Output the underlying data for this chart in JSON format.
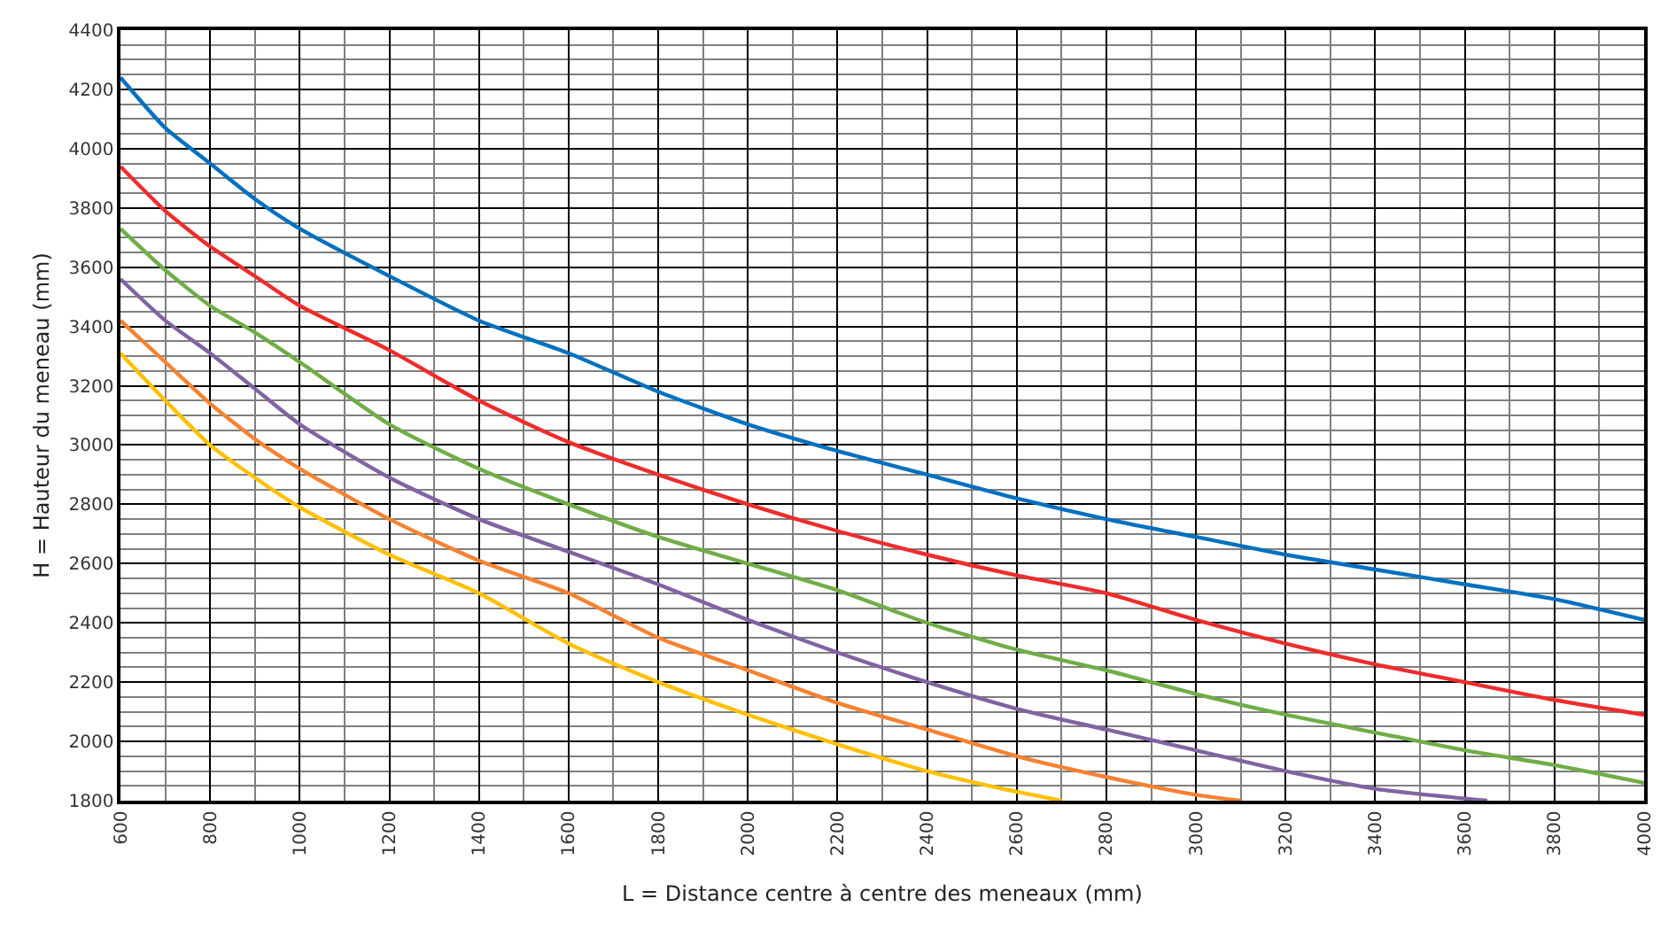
{
  "chart_data": {
    "type": "line",
    "xlabel": "L = Distance centre à centre des meneaux (mm)",
    "ylabel": "H = Hauteur du meneau (mm)",
    "xlim": [
      600,
      4000
    ],
    "xticks": [
      600,
      800,
      1000,
      1200,
      1400,
      1600,
      1800,
      2000,
      2200,
      2400,
      2600,
      2800,
      3000,
      3200,
      3400,
      3600,
      3800,
      4000
    ],
    "ylim": [
      1800,
      4400
    ],
    "yticks": [
      1800,
      2000,
      2200,
      2400,
      2600,
      2800,
      3000,
      3200,
      3400,
      3600,
      3800,
      4000,
      4200,
      4400
    ],
    "grid": true,
    "marker": "none",
    "line_style": "solid",
    "series": [
      {
        "color": "#0070c0",
        "x": [
          600,
          700,
          800,
          900,
          1000,
          1200,
          1400,
          1600,
          1800,
          2000,
          2200,
          2400,
          2600,
          2800,
          3000,
          3200,
          3400,
          3600,
          3800,
          4000
        ],
        "values": [
          4240,
          4070,
          3950,
          3830,
          3730,
          3570,
          3420,
          3310,
          3180,
          3070,
          2980,
          2900,
          2820,
          2750,
          2690,
          2630,
          2580,
          2530,
          2480,
          2410
        ]
      },
      {
        "color": "#ee2c2c",
        "x": [
          600,
          700,
          800,
          900,
          1000,
          1200,
          1400,
          1600,
          1800,
          2000,
          2200,
          2400,
          2600,
          2800,
          3000,
          3200,
          3400,
          3600,
          3800,
          4000
        ],
        "values": [
          3940,
          3790,
          3670,
          3570,
          3470,
          3320,
          3150,
          3010,
          2900,
          2800,
          2710,
          2630,
          2560,
          2500,
          2410,
          2330,
          2260,
          2200,
          2140,
          2090
        ]
      },
      {
        "color": "#70ad47",
        "x": [
          600,
          700,
          800,
          900,
          1000,
          1200,
          1400,
          1600,
          1800,
          2000,
          2200,
          2400,
          2600,
          2800,
          3000,
          3200,
          3400,
          3600,
          3800,
          4000
        ],
        "values": [
          3730,
          3590,
          3470,
          3380,
          3280,
          3070,
          2920,
          2800,
          2690,
          2600,
          2510,
          2400,
          2310,
          2240,
          2160,
          2090,
          2030,
          1970,
          1920,
          1860
        ]
      },
      {
        "color": "#8064a2",
        "x": [
          600,
          700,
          800,
          900,
          1000,
          1200,
          1400,
          1600,
          1800,
          2000,
          2200,
          2400,
          2600,
          2800,
          3000,
          3200,
          3400,
          3650
        ],
        "values": [
          3560,
          3420,
          3310,
          3190,
          3070,
          2890,
          2750,
          2640,
          2530,
          2410,
          2300,
          2200,
          2110,
          2040,
          1970,
          1900,
          1840,
          1800
        ]
      },
      {
        "color": "#f58232",
        "x": [
          600,
          700,
          800,
          900,
          1000,
          1200,
          1400,
          1600,
          1800,
          2000,
          2200,
          2400,
          2600,
          2800,
          3000,
          3100
        ],
        "values": [
          3420,
          3280,
          3140,
          3020,
          2920,
          2750,
          2610,
          2500,
          2350,
          2240,
          2130,
          2040,
          1950,
          1880,
          1820,
          1800
        ]
      },
      {
        "color": "#ffc000",
        "x": [
          600,
          700,
          800,
          900,
          1000,
          1200,
          1400,
          1600,
          1800,
          2000,
          2200,
          2400,
          2600,
          2700
        ],
        "values": [
          3310,
          3150,
          3000,
          2890,
          2790,
          2630,
          2500,
          2330,
          2200,
          2090,
          1990,
          1900,
          1830,
          1800
        ]
      }
    ]
  }
}
